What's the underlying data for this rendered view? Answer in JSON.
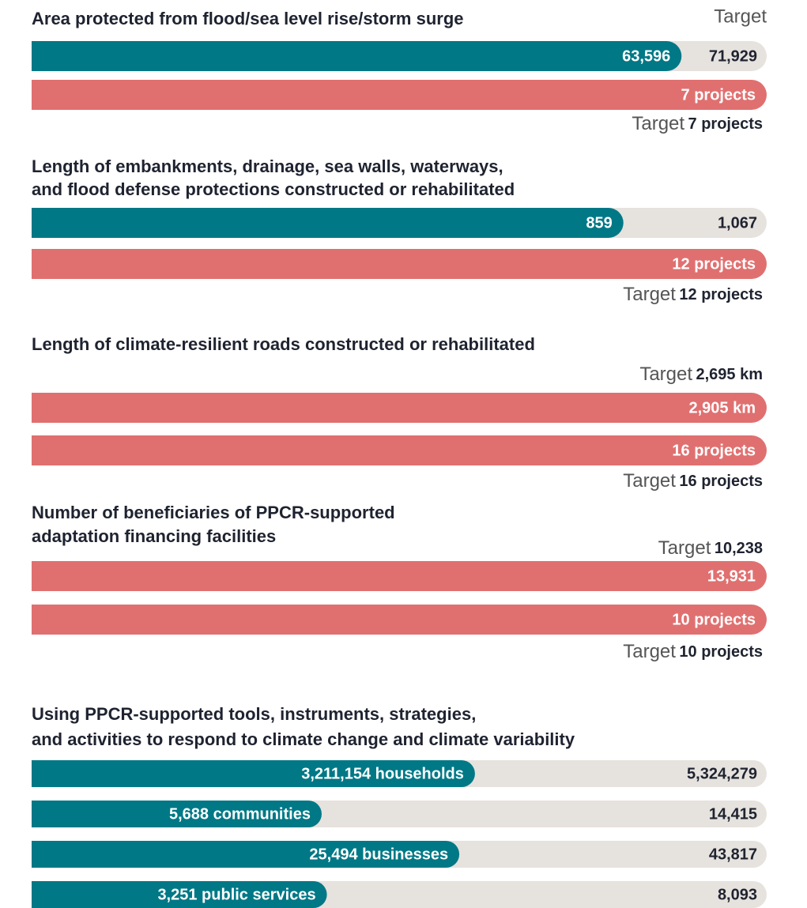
{
  "sections": [
    {
      "title": [
        "Area  protected from flood/sea level rise/storm surge"
      ],
      "title_target": "Target",
      "items": [
        {
          "kind": "progress",
          "value": 63596,
          "value_label": "63,596",
          "target": 71929,
          "target_label": "71,929"
        },
        {
          "kind": "bar",
          "label": "7 projects"
        },
        {
          "kind": "target",
          "word": "Target",
          "value": "7 projects"
        }
      ]
    },
    {
      "title": [
        "Length of embankments, drainage, sea walls, waterways,",
        "and flood defense protections constructed or rehabilitated"
      ],
      "items": [
        {
          "kind": "progress",
          "value": 859,
          "value_label": "859",
          "target": 1067,
          "target_label": "1,067"
        },
        {
          "kind": "bar",
          "label": "12 projects"
        },
        {
          "kind": "target",
          "word": "Target",
          "value": "12 projects"
        }
      ]
    },
    {
      "title": [
        "Length of climate-resilient roads constructed or rehabilitated"
      ],
      "items": [
        {
          "kind": "target",
          "word": "Target",
          "value": "2,695 km"
        },
        {
          "kind": "bar",
          "label": "2,905 km"
        },
        {
          "kind": "bar",
          "label": "16 projects"
        },
        {
          "kind": "target",
          "word": "Target",
          "value": "16 projects"
        }
      ]
    },
    {
      "title": [
        "Number of beneficiaries of PPCR-supported",
        "adaptation financing facilities"
      ],
      "items": [
        {
          "kind": "target",
          "word": "Target",
          "value": "10,238"
        },
        {
          "kind": "bar",
          "label": "13,931"
        },
        {
          "kind": "bar",
          "label": "10 projects"
        },
        {
          "kind": "target",
          "word": "Target",
          "value": "10 projects"
        }
      ]
    },
    {
      "title": [
        "Using PPCR-supported tools, instruments, strategies,",
        "and activities to respond to climate change and climate variability"
      ],
      "items": [
        {
          "kind": "progress",
          "value": 3211154,
          "value_label": "3,211,154 households",
          "target": 5324279,
          "target_label": "5,324,279"
        },
        {
          "kind": "progress",
          "value": 5688,
          "value_label": "5,688 communities",
          "target": 14415,
          "target_label": "14,415"
        },
        {
          "kind": "progress",
          "value": 25494,
          "value_label": "25,494 businesses",
          "target": 43817,
          "target_label": "43,817"
        },
        {
          "kind": "progress",
          "value": 3251,
          "value_label": "3,251 public services",
          "target": 8093,
          "target_label": "8,093"
        }
      ]
    }
  ]
}
